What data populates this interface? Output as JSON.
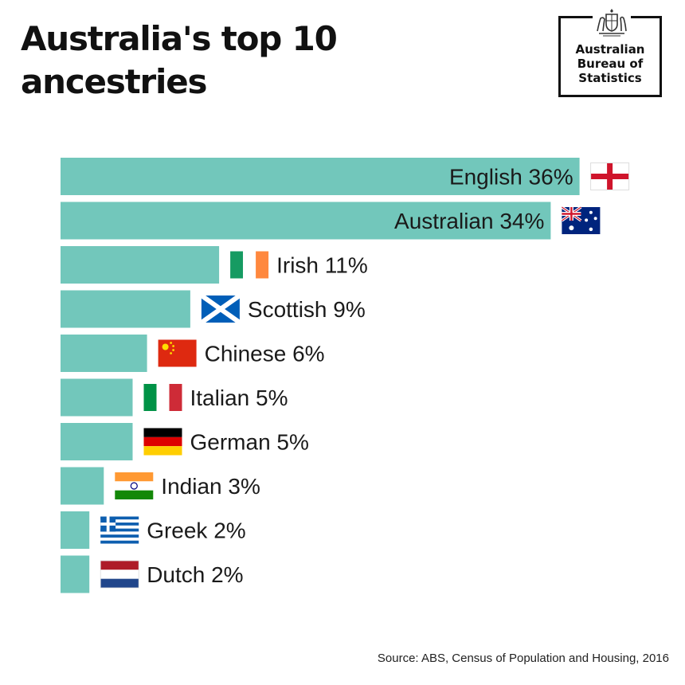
{
  "title": {
    "line1": "Australia's top 10",
    "line2": "ancestries"
  },
  "logo": {
    "line1": "Australian",
    "line2": "Bureau of",
    "line3": "Statistics",
    "crest_icon": "coat-of-arms-icon"
  },
  "colors": {
    "bar": "#72c7bb",
    "text": "#1a1a1a"
  },
  "chart_data": {
    "type": "bar",
    "orientation": "horizontal",
    "title": "Australia's top 10 ancestries",
    "xlabel": "",
    "ylabel": "",
    "unit": "%",
    "xlim": [
      0,
      36
    ],
    "categories": [
      "English",
      "Australian",
      "Irish",
      "Scottish",
      "Chinese",
      "Italian",
      "German",
      "Indian",
      "Greek",
      "Dutch"
    ],
    "values": [
      36,
      34,
      11,
      9,
      6,
      5,
      5,
      3,
      2,
      2
    ],
    "labels": [
      "English 36%",
      "Australian 34%",
      "Irish 11%",
      "Scottish 9%",
      "Chinese 6%",
      "Italian 5%",
      "German 5%",
      "Indian 3%",
      "Greek 2%",
      "Dutch 2%"
    ],
    "label_position": [
      "inside",
      "inside",
      "outside",
      "outside",
      "outside",
      "outside",
      "outside",
      "outside",
      "outside",
      "outside"
    ],
    "flags": [
      "england-flag-icon",
      "australia-flag-icon",
      "ireland-flag-icon",
      "scotland-flag-icon",
      "china-flag-icon",
      "italy-flag-icon",
      "germany-flag-icon",
      "india-flag-icon",
      "greece-flag-icon",
      "netherlands-flag-icon"
    ],
    "grid": false,
    "legend": "none"
  },
  "source": "Source: ABS, Census of Population and Housing, 2016"
}
